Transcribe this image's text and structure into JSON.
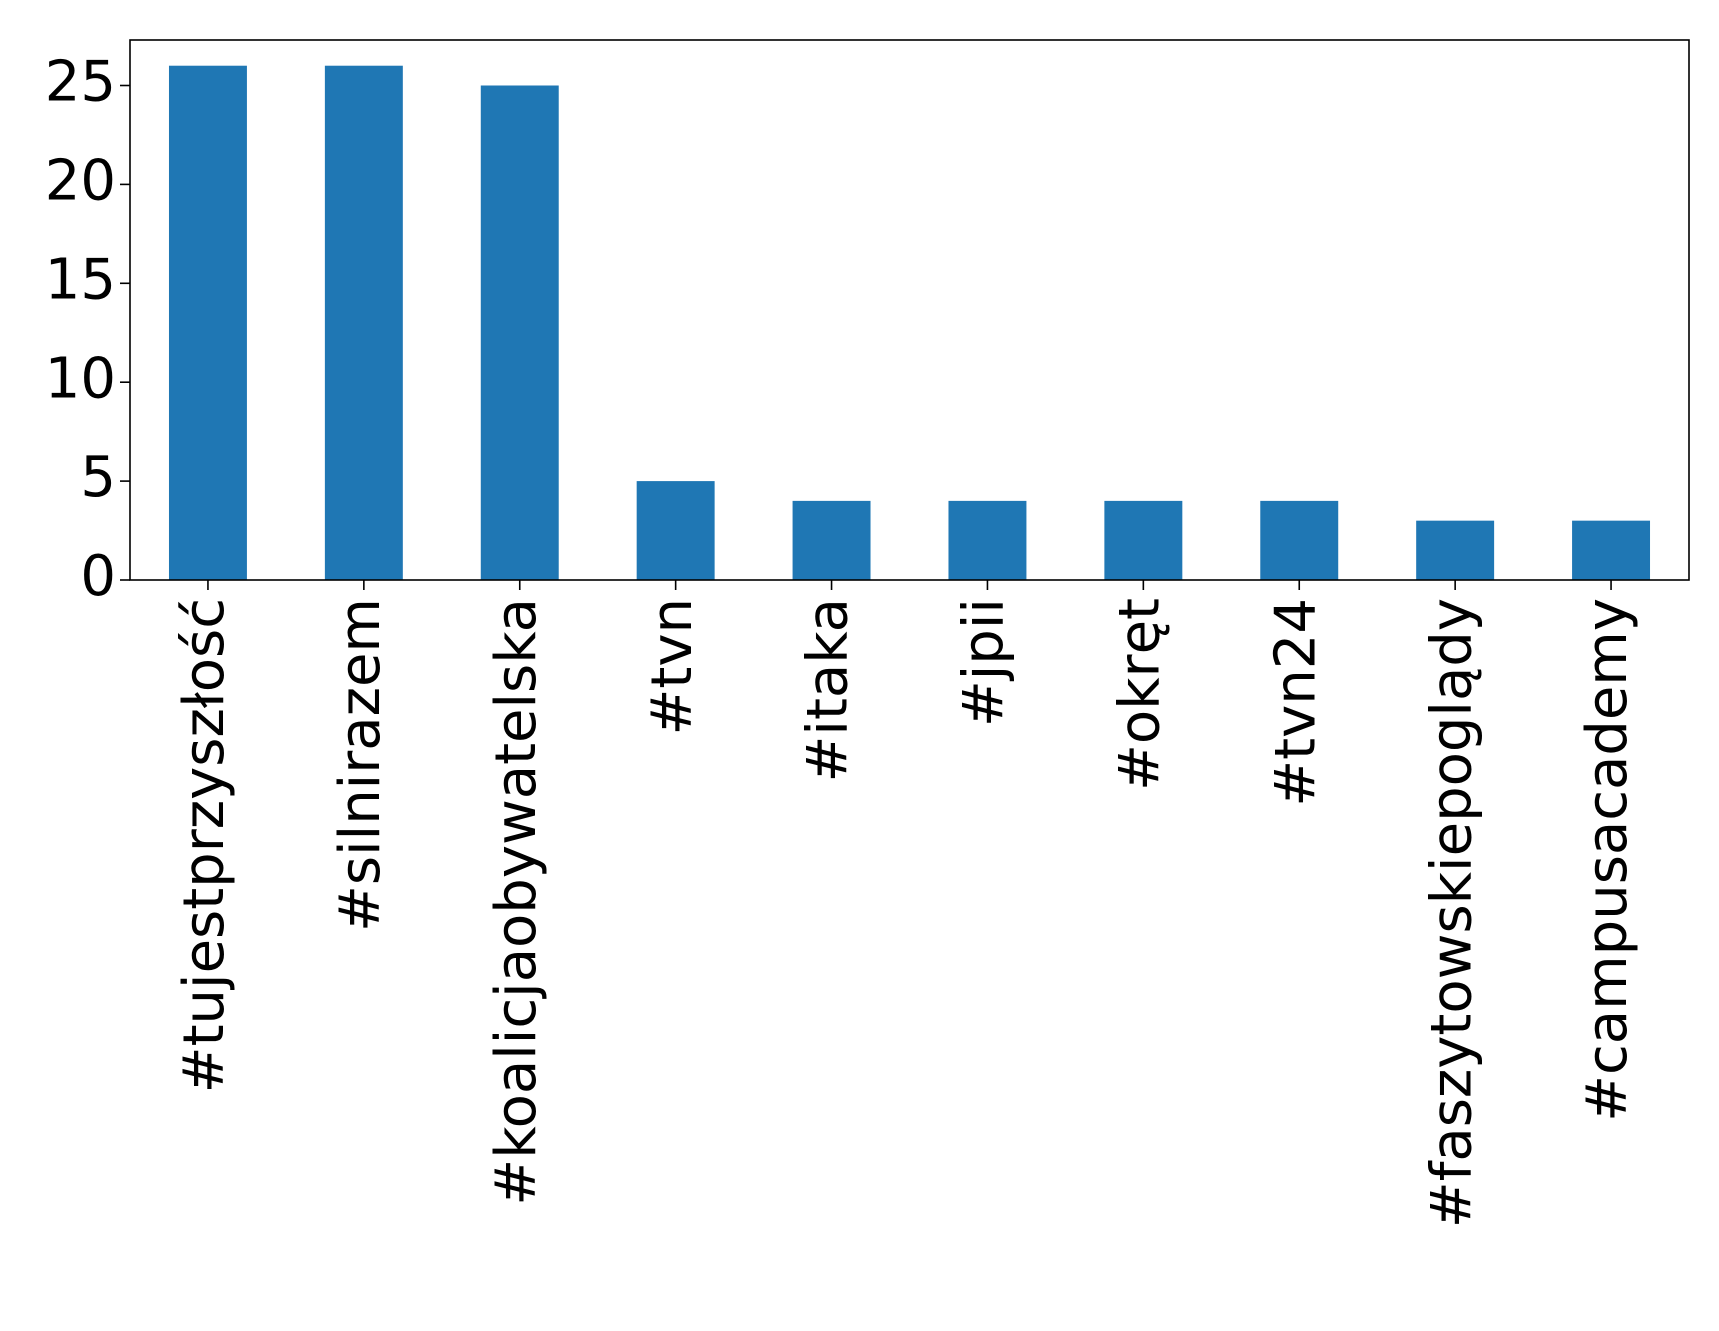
{
  "chart_data": {
    "type": "bar",
    "title": "",
    "xlabel": "",
    "ylabel": "",
    "categories": [
      "#tujestprzyszłość",
      "#silnirazem",
      "#koalicjaobywatelska",
      "#tvn",
      "#itaka",
      "#jpii",
      "#okręt",
      "#tvn24",
      "#faszytowskiepoglądy",
      "#campusacademy"
    ],
    "values": [
      26,
      26,
      25,
      5,
      4,
      4,
      4,
      4,
      3,
      3
    ],
    "ylim": [
      0,
      27.3
    ],
    "yticks": [
      0,
      5,
      10,
      15,
      20,
      25
    ],
    "grid": false,
    "bar_color": "#1f77b4"
  }
}
